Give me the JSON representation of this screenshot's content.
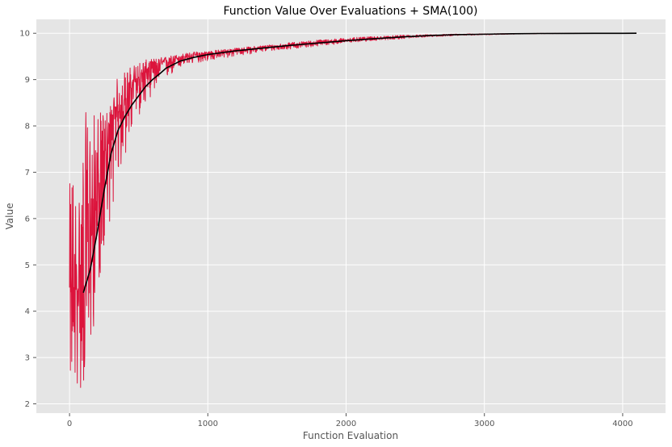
{
  "chart_data": {
    "type": "line",
    "title": "Function Value Over Evaluations + SMA(100)",
    "xlabel": "Function Evaluation",
    "ylabel": "Value",
    "xlim": [
      -240,
      4310
    ],
    "ylim": [
      1.8,
      10.3
    ],
    "xticks": [
      0,
      1000,
      2000,
      3000,
      4000
    ],
    "yticks": [
      2,
      3,
      4,
      5,
      6,
      7,
      8,
      9,
      10
    ],
    "grid": true,
    "legend": "none",
    "series": [
      {
        "key": "raw",
        "color": "#dc143c",
        "x": [
          0,
          20,
          50,
          80,
          110,
          150,
          200,
          250,
          300,
          350,
          400,
          450,
          500,
          600,
          700,
          800,
          900,
          1000,
          1200,
          1400,
          1600,
          1800,
          2000,
          2200,
          2400,
          2600,
          2800,
          3000,
          3200,
          3400,
          3600,
          3800,
          4000,
          4100
        ],
        "mean": [
          4.0,
          4.2,
          4.4,
          4.6,
          5.0,
          5.6,
          6.5,
          7.3,
          7.9,
          8.3,
          8.6,
          8.85,
          9.05,
          9.25,
          9.4,
          9.48,
          9.52,
          9.56,
          9.63,
          9.69,
          9.75,
          9.8,
          9.85,
          9.89,
          9.92,
          9.95,
          9.97,
          9.98,
          9.99,
          9.995,
          9.997,
          9.998,
          9.999,
          10.0
        ],
        "low": [
          2.5,
          2.4,
          2.3,
          2.2,
          2.3,
          3.0,
          4.3,
          5.2,
          6.1,
          6.8,
          7.3,
          7.8,
          8.2,
          8.7,
          9.0,
          9.25,
          9.35,
          9.4,
          9.5,
          9.6,
          9.66,
          9.72,
          9.79,
          9.84,
          9.88,
          9.92,
          9.95,
          9.965,
          9.98,
          9.99,
          9.993,
          9.995,
          9.997,
          9.999
        ],
        "high": [
          6.7,
          7.4,
          6.6,
          6.9,
          8.3,
          8.3,
          8.3,
          8.3,
          8.5,
          9.1,
          9.2,
          9.3,
          9.4,
          9.45,
          9.5,
          9.55,
          9.6,
          9.62,
          9.68,
          9.74,
          9.8,
          9.86,
          9.9,
          9.93,
          9.96,
          9.97,
          9.985,
          9.99,
          9.995,
          9.998,
          9.999,
          10.0,
          10.0,
          10.0
        ],
        "samples": 4100
      },
      {
        "key": "sma",
        "color": "#000000",
        "x": [
          100,
          150,
          200,
          250,
          300,
          350,
          400,
          450,
          500,
          550,
          600,
          650,
          700,
          800,
          900,
          1000,
          1200,
          1400,
          1600,
          1800,
          2000,
          2200,
          2400,
          2600,
          2800,
          3000,
          3200,
          3400,
          3600,
          3800,
          4000,
          4100
        ],
        "y": [
          4.4,
          4.9,
          5.7,
          6.6,
          7.4,
          7.9,
          8.2,
          8.45,
          8.65,
          8.85,
          9.0,
          9.12,
          9.25,
          9.4,
          9.48,
          9.54,
          9.62,
          9.68,
          9.74,
          9.79,
          9.84,
          9.88,
          9.92,
          9.95,
          9.97,
          9.98,
          9.99,
          9.995,
          9.997,
          9.998,
          9.999,
          10.0
        ]
      }
    ]
  }
}
